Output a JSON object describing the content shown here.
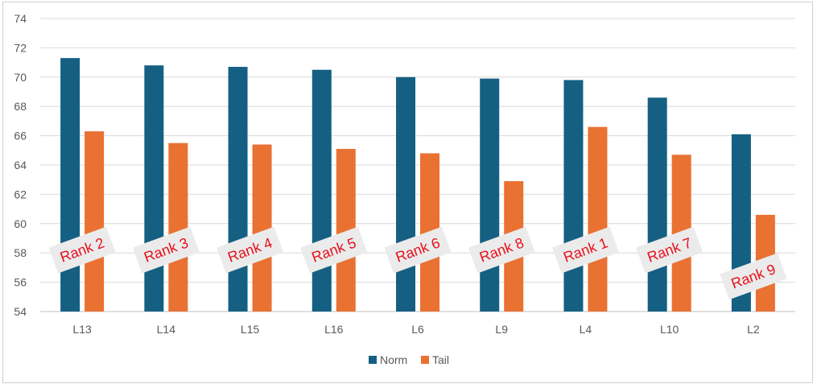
{
  "chart_data": {
    "type": "bar",
    "categories": [
      "L13",
      "L14",
      "L15",
      "L16",
      "L6",
      "L9",
      "L4",
      "L10",
      "L2"
    ],
    "series": [
      {
        "name": "Norm",
        "color": "#156082",
        "values": [
          71.3,
          70.8,
          70.7,
          70.5,
          70.0,
          69.9,
          69.8,
          68.6,
          66.1
        ]
      },
      {
        "name": "Tail",
        "color": "#E97132",
        "values": [
          66.3,
          65.5,
          65.4,
          65.1,
          64.8,
          62.9,
          66.6,
          64.7,
          60.6
        ]
      }
    ],
    "ylim": [
      54,
      74
    ],
    "yticks": [
      54,
      56,
      58,
      60,
      62,
      64,
      66,
      68,
      70,
      72,
      74
    ],
    "grid": true,
    "legend_position": "bottom",
    "annotations": [
      {
        "category": "L13",
        "text": "Rank 2",
        "level": 58.2
      },
      {
        "category": "L14",
        "text": "Rank 3",
        "level": 58.2
      },
      {
        "category": "L15",
        "text": "Rank 4",
        "level": 58.2
      },
      {
        "category": "L16",
        "text": "Rank 5",
        "level": 58.2
      },
      {
        "category": "L6",
        "text": "Rank 6",
        "level": 58.2
      },
      {
        "category": "L9",
        "text": "Rank 8",
        "level": 58.2
      },
      {
        "category": "L4",
        "text": "Rank 1",
        "level": 58.2
      },
      {
        "category": "L10",
        "text": "Rank 7",
        "level": 58.2
      },
      {
        "category": "L2",
        "text": "Rank 9",
        "level": 56.4
      }
    ]
  }
}
